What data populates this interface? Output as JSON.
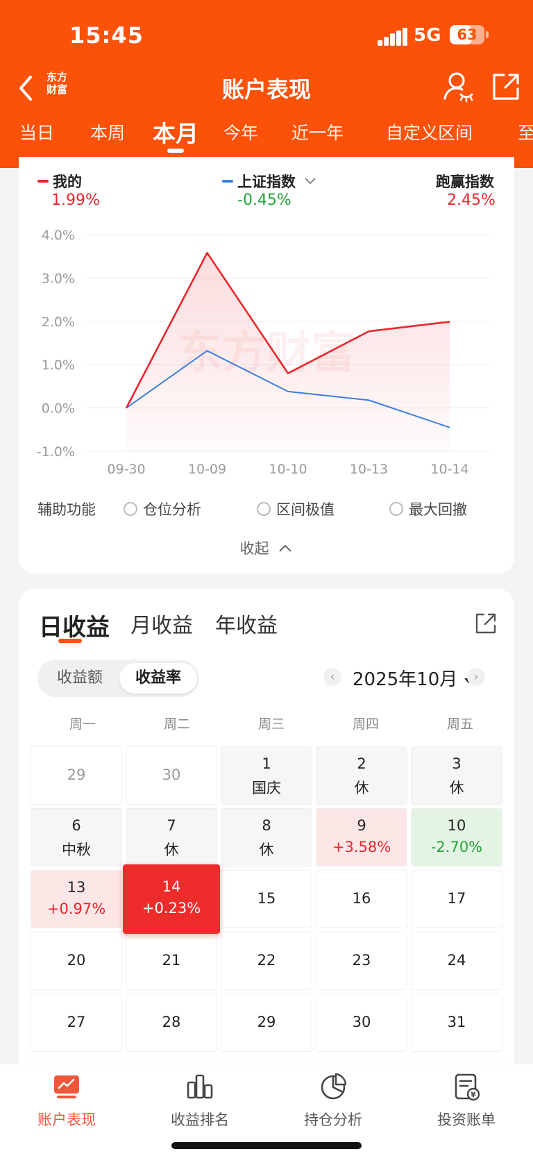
{
  "status_bar": {
    "time": "15:45",
    "network": "5G",
    "battery": "63"
  },
  "nav": {
    "title": "账户表现",
    "logo_line1": "东方",
    "logo_line2": "财富"
  },
  "period_tabs": [
    "当日",
    "本周",
    "本月",
    "今年",
    "近一年",
    "自定义区间",
    "至"
  ],
  "active_period": "本月",
  "legend": {
    "mine": {
      "label": "我的",
      "value": "1.99%"
    },
    "index": {
      "label": "上证指数",
      "value": "-0.45%"
    },
    "beat": {
      "label": "跑赢指数",
      "value": "2.45%"
    }
  },
  "watermark": "东方财富",
  "chart_data": {
    "type": "line",
    "categories": [
      "09-30",
      "10-09",
      "10-10",
      "10-13",
      "10-14"
    ],
    "series": [
      {
        "name": "我的",
        "color": "#e8262c",
        "values": [
          0.0,
          3.58,
          0.8,
          1.77,
          1.99
        ]
      },
      {
        "name": "上证指数",
        "color": "#3a7fe0",
        "values": [
          0.0,
          1.32,
          0.38,
          0.18,
          -0.45
        ]
      }
    ],
    "yticks": [
      "4.0%",
      "3.0%",
      "2.0%",
      "1.0%",
      "0.0%",
      "-1.0%"
    ],
    "ylim": [
      -1.0,
      4.0
    ],
    "grid": true
  },
  "aux": {
    "label": "辅助功能",
    "options": [
      "仓位分析",
      "区间极值",
      "最大回撤"
    ]
  },
  "collapse_label": "收起",
  "returns_tabs": [
    "日收益",
    "月收益",
    "年收益"
  ],
  "segment": [
    "收益额",
    "收益率"
  ],
  "month_label": "2025年10月",
  "weekdays": [
    "周一",
    "周二",
    "周三",
    "周四",
    "周五"
  ],
  "calendar": [
    [
      {
        "day": "29",
        "state": "other"
      },
      {
        "day": "30",
        "state": "other"
      },
      {
        "day": "1",
        "sub": "国庆",
        "state": "holiday"
      },
      {
        "day": "2",
        "sub": "休",
        "state": "holiday"
      },
      {
        "day": "3",
        "sub": "休",
        "state": "holiday"
      }
    ],
    [
      {
        "day": "6",
        "sub": "中秋",
        "state": "holiday"
      },
      {
        "day": "7",
        "sub": "休",
        "state": "holiday"
      },
      {
        "day": "8",
        "sub": "休",
        "state": "holiday"
      },
      {
        "day": "9",
        "sub": "+3.58%",
        "state": "gain"
      },
      {
        "day": "10",
        "sub": "-2.70%",
        "state": "loss"
      }
    ],
    [
      {
        "day": "13",
        "sub": "+0.97%",
        "state": "gain"
      },
      {
        "day": "14",
        "sub": "+0.23%",
        "state": "selected"
      },
      {
        "day": "15",
        "state": "future"
      },
      {
        "day": "16",
        "state": "future"
      },
      {
        "day": "17",
        "state": "future"
      }
    ],
    [
      {
        "day": "20",
        "state": "future"
      },
      {
        "day": "21",
        "state": "future"
      },
      {
        "day": "22",
        "state": "future"
      },
      {
        "day": "23",
        "state": "future"
      },
      {
        "day": "24",
        "state": "future"
      }
    ],
    [
      {
        "day": "27",
        "state": "future"
      },
      {
        "day": "28",
        "state": "future"
      },
      {
        "day": "29",
        "state": "future"
      },
      {
        "day": "30",
        "state": "future"
      },
      {
        "day": "31",
        "state": "future"
      }
    ]
  ],
  "tabbar": [
    {
      "label": "账户表现",
      "icon": "chart-screen-icon",
      "active": true
    },
    {
      "label": "收益排名",
      "icon": "bar-rank-icon",
      "active": false
    },
    {
      "label": "持仓分析",
      "icon": "pie-icon",
      "active": false
    },
    {
      "label": "投资账单",
      "icon": "bill-icon",
      "active": false
    }
  ],
  "colors": {
    "accent": "#fb5109",
    "up": "#e8262c",
    "down": "#23a33a",
    "index_line": "#3a7fe0"
  }
}
